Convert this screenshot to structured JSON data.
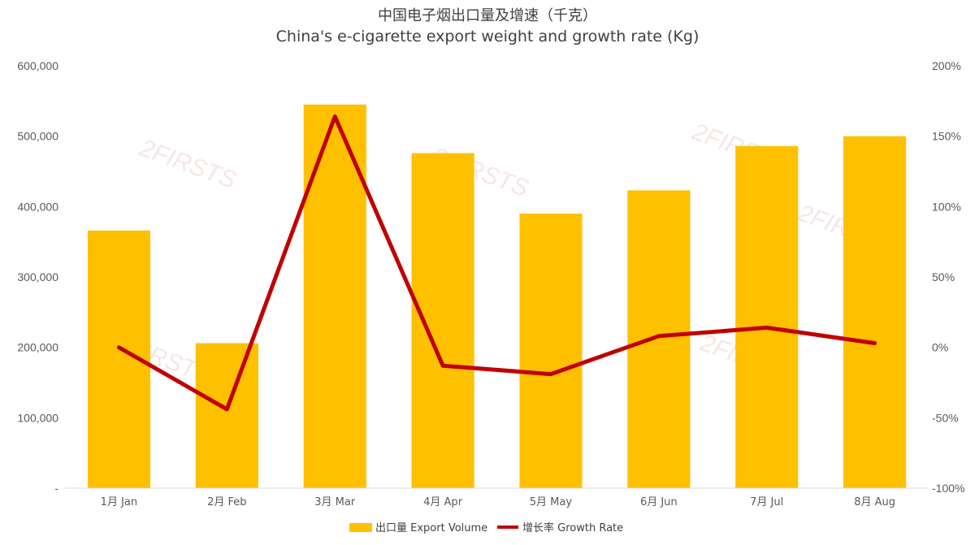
{
  "title_cn": "中国电子烟出口量及增速（千克）",
  "title_en": "China's e-cigarette export weight and growth rate (Kg)",
  "watermark": "2FIRSTS",
  "colors": {
    "bar": "#FFC000",
    "line": "#C00000",
    "axis": "#D9D9D9"
  },
  "chart_data": {
    "type": "bar",
    "categories": [
      "1月 Jan",
      "2月 Feb",
      "3月 Mar",
      "4月 Apr",
      "5月 May",
      "6月 Jun",
      "7月 Jul",
      "8月 Aug"
    ],
    "series": [
      {
        "name": "出口量 Export Volume",
        "type": "bar",
        "axis": "left",
        "values": [
          366000,
          206000,
          545000,
          476000,
          390000,
          423000,
          486000,
          500000
        ]
      },
      {
        "name": "增长率 Growth Rate",
        "type": "line",
        "axis": "right",
        "unit": "%",
        "values": [
          0,
          -44,
          164,
          -13,
          -19,
          8,
          14,
          3
        ]
      }
    ],
    "y_left": {
      "ylim": [
        0,
        600000
      ],
      "ticks": [
        0,
        100000,
        200000,
        300000,
        400000,
        500000,
        600000
      ],
      "tick_labels": [
        "-",
        "100,000",
        "200,000",
        "300,000",
        "400,000",
        "500,000",
        "600,000"
      ]
    },
    "y_right": {
      "ylim": [
        -100,
        200
      ],
      "ticks": [
        -100,
        -50,
        0,
        50,
        100,
        150,
        200
      ],
      "tick_labels": [
        "-100%",
        "-50%",
        "0%",
        "50%",
        "100%",
        "150%",
        "200%"
      ]
    },
    "grid": false,
    "legend": "bottom-center"
  }
}
